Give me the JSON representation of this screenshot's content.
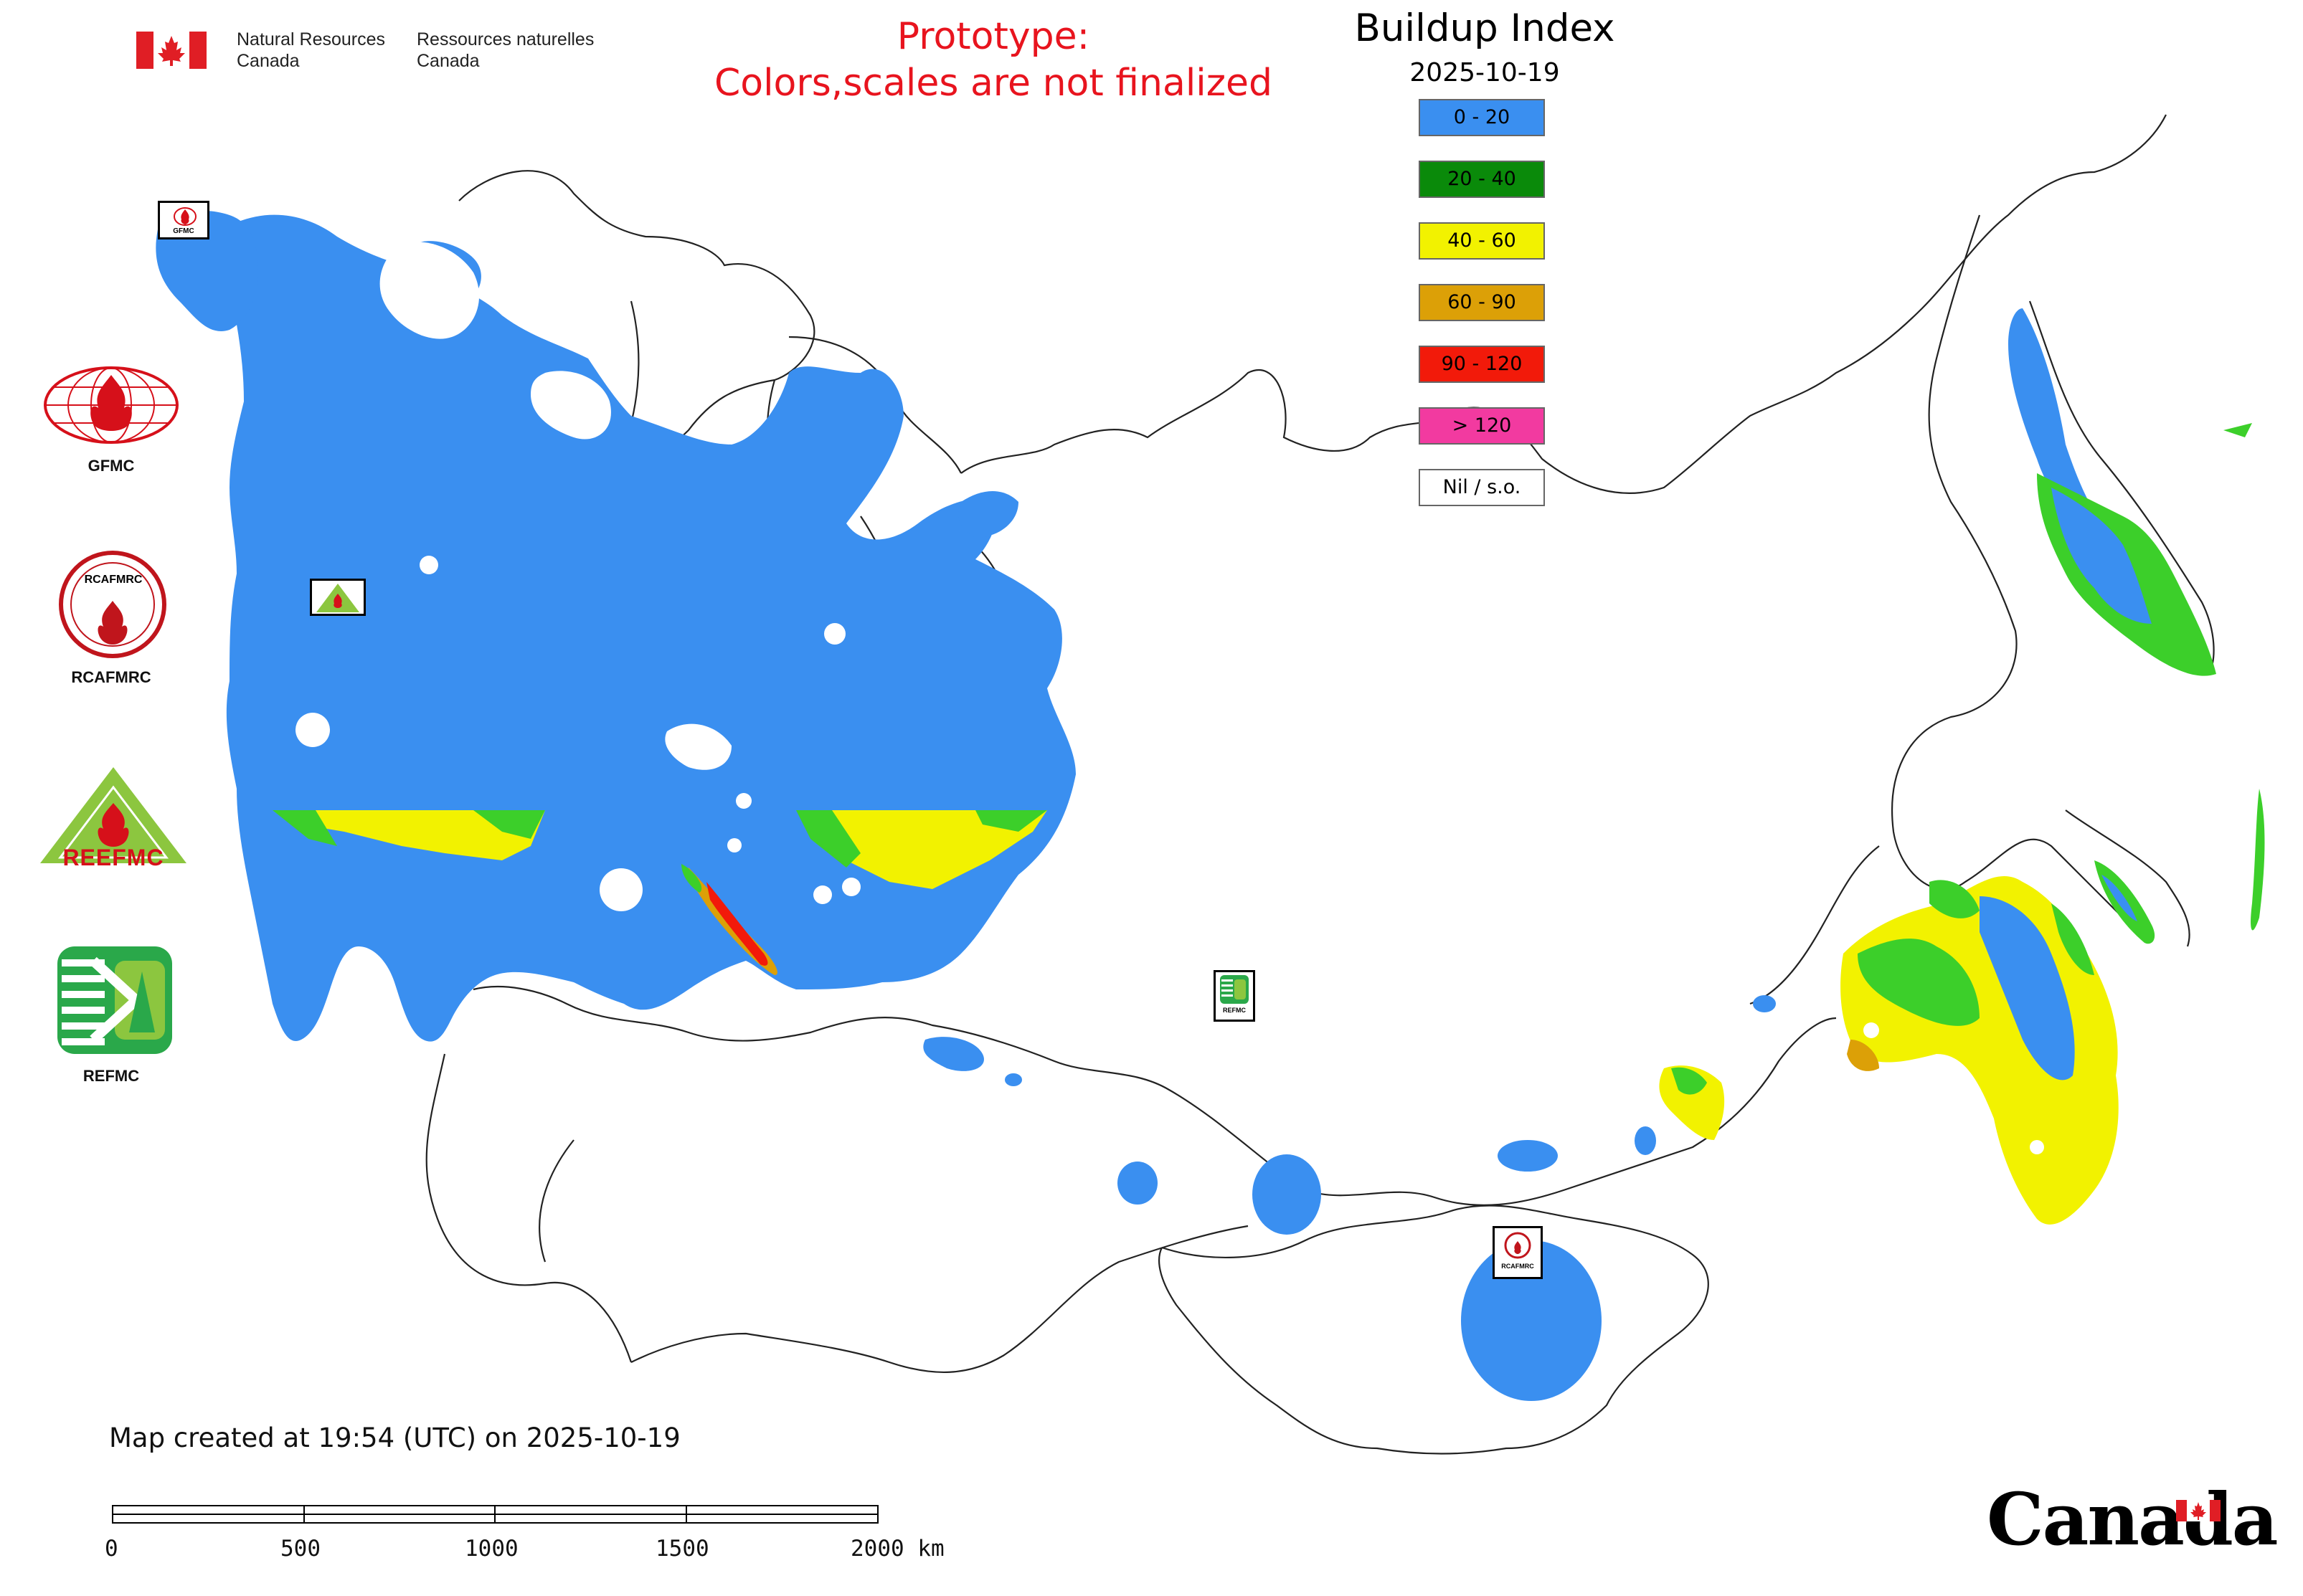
{
  "header": {
    "agency_en_line1": "Natural Resources",
    "agency_en_line2": "Canada",
    "agency_fr_line1": "Ressources naturelles",
    "agency_fr_line2": "Canada",
    "prototype_line1": "Prototype:",
    "prototype_line2": "Colors,scales are not finalized"
  },
  "legend": {
    "title": "Buildup Index",
    "date": "2025-10-19",
    "classes": [
      {
        "label": "0 - 20",
        "color": "#3a8ff0"
      },
      {
        "label": "20 - 40",
        "color": "#0a8a0a"
      },
      {
        "label": "40 - 60",
        "color": "#f2f200"
      },
      {
        "label": "60 - 90",
        "color": "#dca007"
      },
      {
        "label": "90 - 120",
        "color": "#f21a0a"
      },
      {
        "label": "> 120",
        "color": "#f23aa0"
      },
      {
        "label": "Nil / s.o.",
        "color": "#ffffff"
      }
    ]
  },
  "organizations": {
    "gfmc": "GFMC",
    "rcafmrc": "RCAFMRC",
    "reefmc": "REEFMC",
    "refmc": "REFMC",
    "rcafmrc_ring_text": "RCAFMRC",
    "reefmc_logo_text": "REEFMC",
    "small_gfmc": "GFMC",
    "small_refmc": "REFMC",
    "small_rcafmrc": "RCAFMRC"
  },
  "footer": {
    "map_created": "Map created at 19:54 (UTC) on 2025-10-19",
    "scale_labels": [
      "0",
      "500",
      "1000",
      "1500",
      "2000 km"
    ],
    "canada_wordmark": "Canada"
  },
  "colors": {
    "water_blue": "#3a8ff0",
    "green": "#0a8a0a",
    "light_green": "#3ccf2a",
    "yellow": "#f2f200",
    "orange": "#dca007",
    "red": "#f21a0a",
    "title_red": "#e8141e"
  }
}
